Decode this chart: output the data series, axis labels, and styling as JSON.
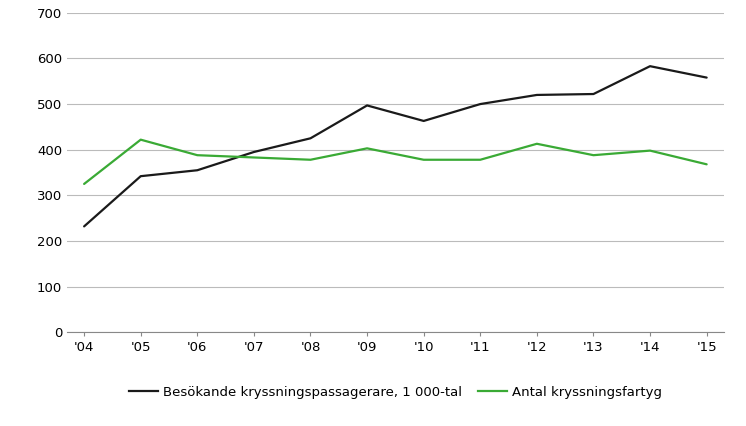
{
  "years": [
    "'04",
    "'05",
    "'06",
    "'07",
    "'08",
    "'09",
    "'10",
    "'11",
    "'12",
    "'13",
    "'14",
    "'15"
  ],
  "passengers": [
    232,
    342,
    355,
    395,
    425,
    497,
    463,
    500,
    520,
    522,
    583,
    558
  ],
  "ships": [
    325,
    422,
    388,
    383,
    378,
    403,
    378,
    378,
    413,
    388,
    398,
    368
  ],
  "passenger_color": "#1a1a1a",
  "ship_color": "#3aaa35",
  "passenger_label": "Besökande kryssningspassagerare, 1 000-tal",
  "ship_label": "Antal kryssningsfartyg",
  "ylim": [
    0,
    700
  ],
  "yticks": [
    0,
    100,
    200,
    300,
    400,
    500,
    600,
    700
  ],
  "grid_color": "#bbbbbb",
  "background_color": "#ffffff",
  "line_width": 1.6,
  "tick_fontsize": 9.5,
  "legend_fontsize": 9.5
}
